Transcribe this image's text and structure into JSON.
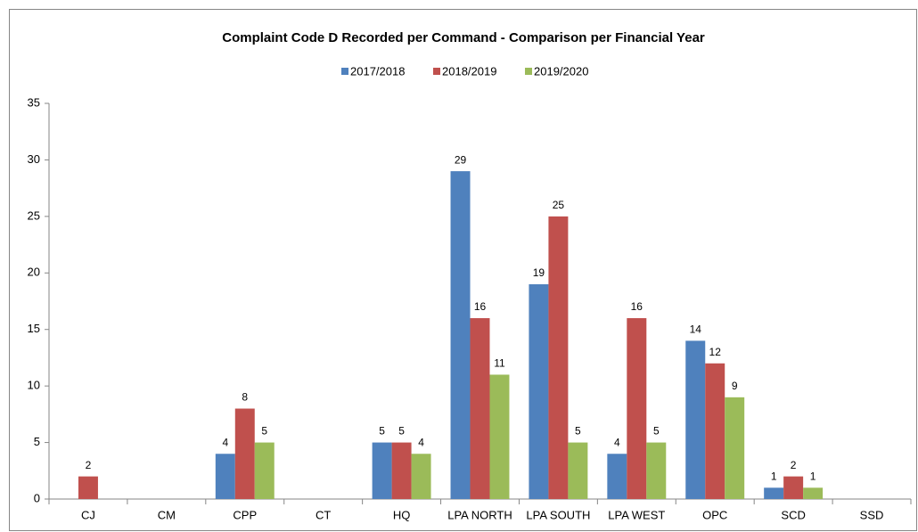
{
  "chart_data": {
    "type": "bar",
    "title": "Complaint Code D Recorded per Command - Comparison per Financial Year",
    "categories": [
      "CJ",
      "CM",
      "CPP",
      "CT",
      "HQ",
      "LPA NORTH",
      "LPA SOUTH",
      "LPA WEST",
      "OPC",
      "SCD",
      "SSD"
    ],
    "series": [
      {
        "name": "2017/2018",
        "color": "#4f81bd",
        "values": [
          null,
          null,
          4,
          null,
          5,
          29,
          19,
          4,
          14,
          1,
          null
        ]
      },
      {
        "name": "2018/2019",
        "color": "#c0504d",
        "values": [
          2,
          null,
          8,
          null,
          5,
          16,
          25,
          16,
          12,
          2,
          null
        ]
      },
      {
        "name": "2019/2020",
        "color": "#9bbb59",
        "values": [
          null,
          null,
          5,
          null,
          4,
          11,
          5,
          5,
          9,
          1,
          null
        ]
      }
    ],
    "ylim": [
      0,
      35
    ],
    "yticks": [
      0,
      5,
      10,
      15,
      20,
      25,
      30,
      35
    ],
    "grid": false,
    "legend": "top"
  }
}
